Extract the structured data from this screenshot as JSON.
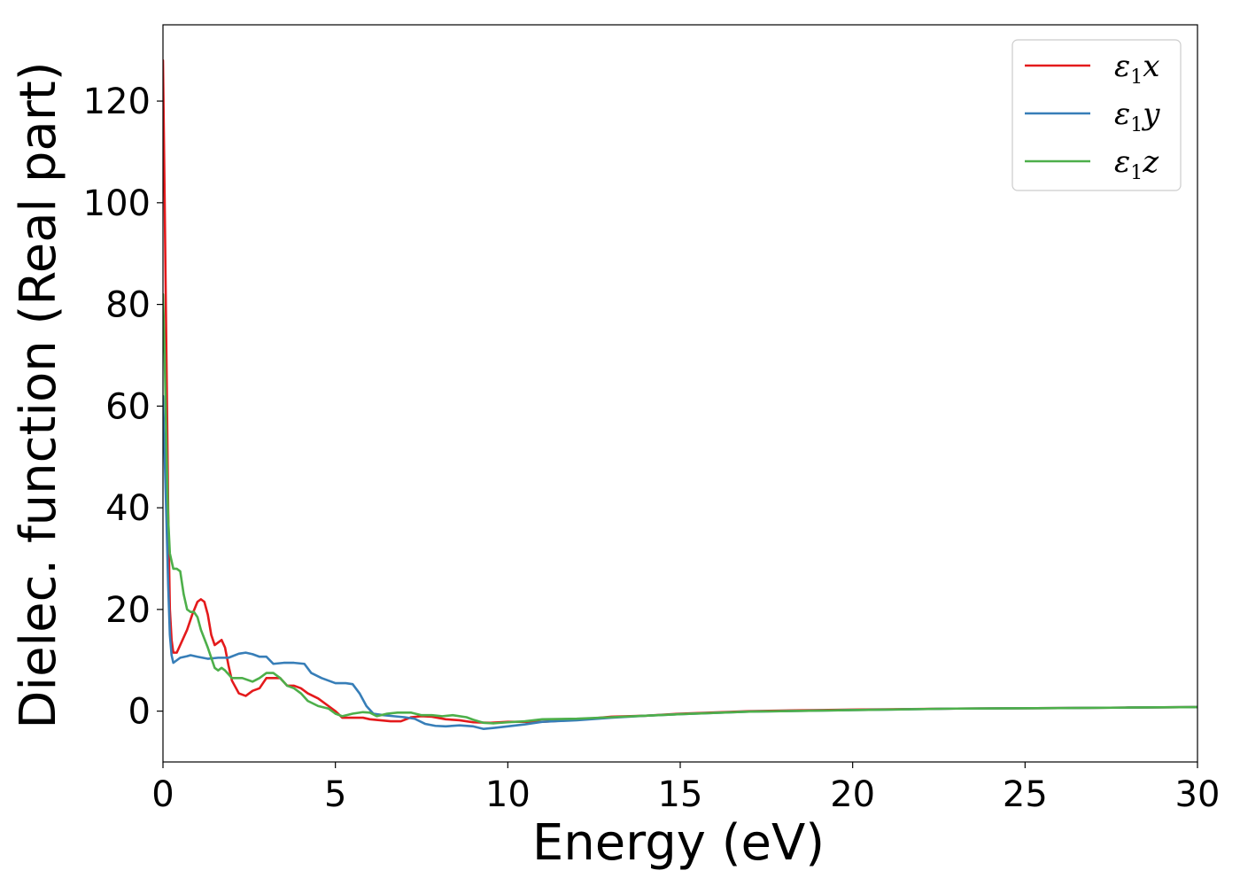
{
  "chart_data": {
    "type": "line",
    "xlabel": "Energy (eV)",
    "ylabel": "Dielec. function (Real part)",
    "xlim": [
      0,
      30
    ],
    "ylim": [
      -10,
      135
    ],
    "xticks": [
      0,
      5,
      10,
      15,
      20,
      25,
      30
    ],
    "yticks": [
      0,
      20,
      40,
      60,
      80,
      100,
      120
    ],
    "grid": false,
    "legend_position": "top-right",
    "series": [
      {
        "name": "ε1x",
        "legend_base": "ε",
        "legend_sub": "1",
        "legend_var": "x",
        "color": "#e41a1c",
        "points": [
          [
            0,
            128
          ],
          [
            0.05,
            100
          ],
          [
            0.1,
            70
          ],
          [
            0.15,
            40
          ],
          [
            0.2,
            20
          ],
          [
            0.25,
            14
          ],
          [
            0.3,
            11.5
          ],
          [
            0.4,
            11.5
          ],
          [
            0.5,
            13
          ],
          [
            0.7,
            16
          ],
          [
            0.85,
            19
          ],
          [
            1.0,
            21.5
          ],
          [
            1.1,
            22
          ],
          [
            1.2,
            21.5
          ],
          [
            1.3,
            19
          ],
          [
            1.4,
            15
          ],
          [
            1.5,
            13
          ],
          [
            1.6,
            13.5
          ],
          [
            1.7,
            14
          ],
          [
            1.8,
            12.5
          ],
          [
            1.9,
            9
          ],
          [
            2.0,
            6
          ],
          [
            2.2,
            3.5
          ],
          [
            2.4,
            3
          ],
          [
            2.6,
            4
          ],
          [
            2.8,
            4.5
          ],
          [
            3.0,
            6.5
          ],
          [
            3.2,
            6.5
          ],
          [
            3.4,
            6.5
          ],
          [
            3.6,
            5
          ],
          [
            3.8,
            5
          ],
          [
            4.0,
            4.5
          ],
          [
            4.2,
            3.5
          ],
          [
            4.5,
            2.5
          ],
          [
            4.8,
            1
          ],
          [
            5.0,
            0
          ],
          [
            5.2,
            -1.3
          ],
          [
            5.5,
            -1.3
          ],
          [
            5.8,
            -1.3
          ],
          [
            6.0,
            -1.6
          ],
          [
            6.3,
            -1.8
          ],
          [
            6.6,
            -2
          ],
          [
            6.9,
            -2
          ],
          [
            7.2,
            -1.2
          ],
          [
            7.5,
            -1
          ],
          [
            7.8,
            -1.1
          ],
          [
            8.2,
            -1.6
          ],
          [
            8.6,
            -1.8
          ],
          [
            9.0,
            -2.2
          ],
          [
            9.5,
            -2.3
          ],
          [
            10,
            -2.1
          ],
          [
            11,
            -2.1
          ],
          [
            12,
            -1.7
          ],
          [
            13,
            -1.1
          ],
          [
            14,
            -0.9
          ],
          [
            15,
            -0.5
          ],
          [
            17,
            0
          ],
          [
            20,
            0.3
          ],
          [
            23,
            0.5
          ],
          [
            26,
            0.6
          ],
          [
            28,
            0.7
          ],
          [
            30,
            0.8
          ]
        ]
      },
      {
        "name": "ε1y",
        "legend_base": "ε",
        "legend_sub": "1",
        "legend_var": "y",
        "color": "#377eb8",
        "points": [
          [
            0,
            62
          ],
          [
            0.05,
            50
          ],
          [
            0.1,
            38
          ],
          [
            0.15,
            25
          ],
          [
            0.2,
            15
          ],
          [
            0.25,
            11
          ],
          [
            0.3,
            9.5
          ],
          [
            0.4,
            10
          ],
          [
            0.5,
            10.5
          ],
          [
            0.7,
            10.8
          ],
          [
            0.8,
            11
          ],
          [
            1.0,
            10.7
          ],
          [
            1.3,
            10.3
          ],
          [
            1.6,
            10.5
          ],
          [
            1.9,
            10.5
          ],
          [
            2.2,
            11.3
          ],
          [
            2.4,
            11.5
          ],
          [
            2.6,
            11.2
          ],
          [
            2.8,
            10.7
          ],
          [
            3.0,
            10.7
          ],
          [
            3.2,
            9.3
          ],
          [
            3.5,
            9.5
          ],
          [
            3.8,
            9.5
          ],
          [
            4.1,
            9.3
          ],
          [
            4.3,
            7.5
          ],
          [
            4.6,
            6.5
          ],
          [
            4.8,
            6
          ],
          [
            5.0,
            5.5
          ],
          [
            5.3,
            5.5
          ],
          [
            5.5,
            5.3
          ],
          [
            5.7,
            3.5
          ],
          [
            5.9,
            1
          ],
          [
            6.1,
            -0.5
          ],
          [
            6.4,
            -0.8
          ],
          [
            6.7,
            -1
          ],
          [
            7.0,
            -1.2
          ],
          [
            7.3,
            -1.5
          ],
          [
            7.6,
            -2.5
          ],
          [
            7.9,
            -2.9
          ],
          [
            8.2,
            -3
          ],
          [
            8.6,
            -2.8
          ],
          [
            9.0,
            -3
          ],
          [
            9.3,
            -3.5
          ],
          [
            9.6,
            -3.3
          ],
          [
            10,
            -3
          ],
          [
            10.5,
            -2.6
          ],
          [
            11,
            -2.1
          ],
          [
            12,
            -1.8
          ],
          [
            13,
            -1.3
          ],
          [
            14,
            -0.9
          ],
          [
            15,
            -0.6
          ],
          [
            17,
            -0.1
          ],
          [
            20,
            0.2
          ],
          [
            23,
            0.5
          ],
          [
            26,
            0.6
          ],
          [
            28,
            0.7
          ],
          [
            30,
            0.8
          ]
        ]
      },
      {
        "name": "ε1z",
        "legend_base": "ε",
        "legend_sub": "1",
        "legend_var": "z",
        "color": "#4daf4a",
        "points": [
          [
            0,
            82
          ],
          [
            0.05,
            70
          ],
          [
            0.1,
            52
          ],
          [
            0.15,
            38
          ],
          [
            0.2,
            31
          ],
          [
            0.3,
            28
          ],
          [
            0.4,
            28
          ],
          [
            0.5,
            27.5
          ],
          [
            0.6,
            23
          ],
          [
            0.7,
            20
          ],
          [
            0.8,
            19.5
          ],
          [
            0.9,
            19.5
          ],
          [
            1.0,
            18.5
          ],
          [
            1.1,
            16
          ],
          [
            1.3,
            12.5
          ],
          [
            1.5,
            8.5
          ],
          [
            1.6,
            8
          ],
          [
            1.7,
            8.5
          ],
          [
            1.8,
            8
          ],
          [
            2.0,
            6.5
          ],
          [
            2.3,
            6.5
          ],
          [
            2.6,
            5.8
          ],
          [
            2.8,
            6.5
          ],
          [
            3.0,
            7.5
          ],
          [
            3.2,
            7.5
          ],
          [
            3.4,
            6.5
          ],
          [
            3.6,
            5
          ],
          [
            3.8,
            4.5
          ],
          [
            4.0,
            3.5
          ],
          [
            4.2,
            2
          ],
          [
            4.5,
            1
          ],
          [
            4.8,
            0.5
          ],
          [
            5.0,
            -0.5
          ],
          [
            5.2,
            -1
          ],
          [
            5.5,
            -0.5
          ],
          [
            5.8,
            -0.2
          ],
          [
            6.0,
            -0.3
          ],
          [
            6.2,
            -1
          ],
          [
            6.5,
            -0.5
          ],
          [
            6.8,
            -0.3
          ],
          [
            7.2,
            -0.3
          ],
          [
            7.5,
            -0.8
          ],
          [
            7.8,
            -0.8
          ],
          [
            8.1,
            -1
          ],
          [
            8.4,
            -0.8
          ],
          [
            8.8,
            -1.2
          ],
          [
            9.0,
            -1.7
          ],
          [
            9.3,
            -2.3
          ],
          [
            9.6,
            -2.4
          ],
          [
            10,
            -2.2
          ],
          [
            10.5,
            -2
          ],
          [
            11,
            -1.6
          ],
          [
            12,
            -1.5
          ],
          [
            13,
            -1.2
          ],
          [
            14,
            -0.9
          ],
          [
            15,
            -0.6
          ],
          [
            17,
            -0.1
          ],
          [
            20,
            0.2
          ],
          [
            23,
            0.5
          ],
          [
            26,
            0.6
          ],
          [
            28,
            0.7
          ],
          [
            30,
            0.8
          ]
        ]
      }
    ]
  }
}
